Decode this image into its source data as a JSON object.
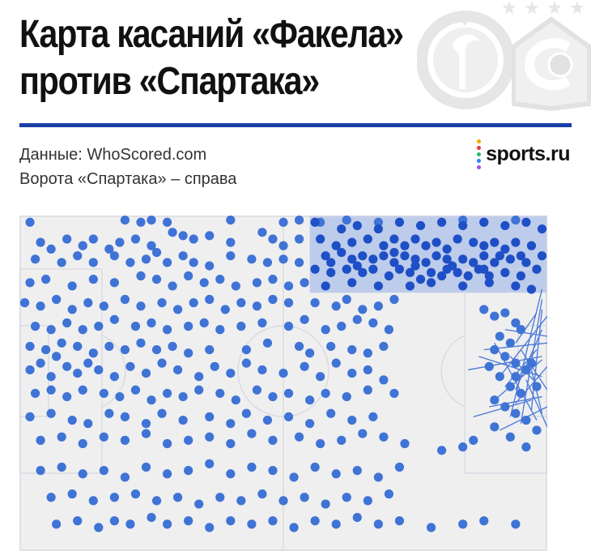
{
  "header": {
    "title_line1": "Карта касаний «Факела»",
    "title_line2": "против «Спартака»",
    "source": "Данные: WhoScored.com",
    "note": "Ворота «Спартака» – справа",
    "brand": "sports.ru",
    "brand_dot_colors": [
      "#f2a700",
      "#e5383b",
      "#2bb673",
      "#2d7ff9",
      "#9b51e0"
    ]
  },
  "colors": {
    "rule": "#1a3fa6",
    "touch": "#3f73d6",
    "highlight_touch": "#1f4fc6",
    "highlight_zone": "#b4c6ea",
    "pitch_bg": "#efefef",
    "pitch_lines": "#d6d6e2",
    "pass_line": "#4a78d8",
    "crest": "#e6e6e6"
  },
  "chart_data": {
    "type": "scatter",
    "pitch": {
      "length": 100,
      "width": 100
    },
    "xlim": [
      0,
      100
    ],
    "ylim": [
      0,
      100
    ],
    "highlight_zone": {
      "x": [
        55,
        100
      ],
      "y": [
        77,
        100
      ]
    },
    "highlight_points": [
      [
        56,
        98
      ],
      [
        61,
        96
      ],
      [
        64,
        97
      ],
      [
        68,
        96
      ],
      [
        72,
        98
      ],
      [
        76,
        97
      ],
      [
        80,
        98
      ],
      [
        84,
        97
      ],
      [
        88,
        98
      ],
      [
        92,
        97
      ],
      [
        96,
        98
      ],
      [
        99,
        96
      ],
      [
        57,
        93
      ],
      [
        60,
        91
      ],
      [
        63,
        92
      ],
      [
        66,
        93
      ],
      [
        69,
        91
      ],
      [
        71,
        93
      ],
      [
        73,
        91
      ],
      [
        75,
        93
      ],
      [
        77,
        91
      ],
      [
        79,
        92
      ],
      [
        81,
        90
      ],
      [
        83,
        93
      ],
      [
        86,
        92
      ],
      [
        88,
        91
      ],
      [
        90,
        92
      ],
      [
        92,
        90
      ],
      [
        94,
        92
      ],
      [
        97,
        91
      ],
      [
        58,
        88
      ],
      [
        61,
        89
      ],
      [
        63,
        87
      ],
      [
        65,
        88
      ],
      [
        67,
        87
      ],
      [
        69,
        88
      ],
      [
        71,
        86
      ],
      [
        73,
        88
      ],
      [
        75,
        87
      ],
      [
        77,
        86
      ],
      [
        79,
        88
      ],
      [
        81,
        87
      ],
      [
        82,
        85
      ],
      [
        84,
        87
      ],
      [
        86,
        86
      ],
      [
        88,
        88
      ],
      [
        90,
        86
      ],
      [
        93,
        87
      ],
      [
        96,
        86
      ],
      [
        99,
        88
      ],
      [
        56,
        84
      ],
      [
        59,
        83
      ],
      [
        62,
        84
      ],
      [
        65,
        83
      ],
      [
        67,
        84
      ],
      [
        70,
        82
      ],
      [
        72,
        84
      ],
      [
        74,
        83
      ],
      [
        76,
        81
      ],
      [
        78,
        83
      ],
      [
        80,
        82
      ],
      [
        83,
        83
      ],
      [
        85,
        82
      ],
      [
        87,
        84
      ],
      [
        89,
        82
      ],
      [
        92,
        83
      ],
      [
        95,
        82
      ],
      [
        98,
        84
      ],
      [
        58,
        79
      ],
      [
        63,
        80
      ],
      [
        68,
        79
      ],
      [
        74,
        79
      ],
      [
        78,
        80
      ],
      [
        84,
        79
      ],
      [
        89,
        80
      ],
      [
        94,
        79
      ],
      [
        97,
        78
      ],
      [
        59,
        86
      ],
      [
        64,
        85
      ],
      [
        71,
        89
      ],
      [
        75,
        85
      ],
      [
        81,
        84
      ],
      [
        88,
        84
      ],
      [
        91,
        88
      ],
      [
        95,
        88
      ]
    ],
    "points": [
      [
        2,
        98
      ],
      [
        20,
        99
      ],
      [
        23,
        98
      ],
      [
        25,
        99
      ],
      [
        28,
        98
      ],
      [
        40,
        99
      ],
      [
        50,
        98
      ],
      [
        53,
        99
      ],
      [
        57,
        98
      ],
      [
        62,
        99
      ],
      [
        68,
        98
      ],
      [
        84,
        99
      ],
      [
        88,
        98
      ],
      [
        94,
        99
      ],
      [
        4,
        92
      ],
      [
        6,
        90
      ],
      [
        9,
        93
      ],
      [
        12,
        91
      ],
      [
        14,
        93
      ],
      [
        17,
        90
      ],
      [
        19,
        92
      ],
      [
        22,
        93
      ],
      [
        25,
        91
      ],
      [
        29,
        95
      ],
      [
        31,
        94
      ],
      [
        33,
        93
      ],
      [
        36,
        94
      ],
      [
        40,
        92
      ],
      [
        46,
        95
      ],
      [
        48,
        93
      ],
      [
        50,
        91
      ],
      [
        53,
        93
      ],
      [
        3,
        87
      ],
      [
        8,
        86
      ],
      [
        11,
        88
      ],
      [
        14,
        86
      ],
      [
        18,
        88
      ],
      [
        21,
        86
      ],
      [
        24,
        87
      ],
      [
        26,
        89
      ],
      [
        28,
        86
      ],
      [
        31,
        88
      ],
      [
        33,
        86
      ],
      [
        36,
        85
      ],
      [
        40,
        88
      ],
      [
        44,
        87
      ],
      [
        47,
        86
      ],
      [
        50,
        87
      ],
      [
        53,
        86
      ],
      [
        2,
        80
      ],
      [
        5,
        81
      ],
      [
        10,
        79
      ],
      [
        14,
        81
      ],
      [
        18,
        80
      ],
      [
        23,
        82
      ],
      [
        26,
        81
      ],
      [
        29,
        79
      ],
      [
        32,
        82
      ],
      [
        35,
        80
      ],
      [
        38,
        81
      ],
      [
        41,
        79
      ],
      [
        45,
        80
      ],
      [
        48,
        81
      ],
      [
        51,
        79
      ],
      [
        54,
        80
      ],
      [
        1,
        74
      ],
      [
        4,
        73
      ],
      [
        7,
        75
      ],
      [
        10,
        72
      ],
      [
        13,
        74
      ],
      [
        16,
        73
      ],
      [
        20,
        75
      ],
      [
        23,
        73
      ],
      [
        27,
        74
      ],
      [
        30,
        72
      ],
      [
        33,
        74
      ],
      [
        36,
        75
      ],
      [
        39,
        72
      ],
      [
        42,
        74
      ],
      [
        45,
        73
      ],
      [
        48,
        75
      ],
      [
        51,
        74
      ],
      [
        56,
        74
      ],
      [
        60,
        73
      ],
      [
        62,
        75
      ],
      [
        65,
        72
      ],
      [
        68,
        73
      ],
      [
        71,
        75
      ],
      [
        3,
        67
      ],
      [
        6,
        66
      ],
      [
        9,
        68
      ],
      [
        12,
        66
      ],
      [
        15,
        67
      ],
      [
        18,
        69
      ],
      [
        22,
        67
      ],
      [
        25,
        68
      ],
      [
        28,
        66
      ],
      [
        32,
        67
      ],
      [
        35,
        68
      ],
      [
        38,
        66
      ],
      [
        42,
        67
      ],
      [
        46,
        68
      ],
      [
        51,
        67
      ],
      [
        54,
        69
      ],
      [
        58,
        66
      ],
      [
        61,
        67
      ],
      [
        64,
        69
      ],
      [
        67,
        68
      ],
      [
        70,
        66
      ],
      [
        2,
        61
      ],
      [
        5,
        60
      ],
      [
        7,
        58
      ],
      [
        8,
        62
      ],
      [
        11,
        61
      ],
      [
        14,
        59
      ],
      [
        17,
        61
      ],
      [
        20,
        60
      ],
      [
        23,
        62
      ],
      [
        26,
        60
      ],
      [
        29,
        61
      ],
      [
        32,
        59
      ],
      [
        36,
        60
      ],
      [
        43,
        60
      ],
      [
        47,
        62
      ],
      [
        53,
        61
      ],
      [
        55,
        59
      ],
      [
        59,
        61
      ],
      [
        63,
        60
      ],
      [
        66,
        59
      ],
      [
        69,
        61
      ],
      [
        2,
        54
      ],
      [
        4,
        56
      ],
      [
        6,
        52
      ],
      [
        9,
        55
      ],
      [
        11,
        53
      ],
      [
        13,
        56
      ],
      [
        15,
        54
      ],
      [
        18,
        52
      ],
      [
        21,
        55
      ],
      [
        24,
        53
      ],
      [
        27,
        56
      ],
      [
        30,
        54
      ],
      [
        34,
        52
      ],
      [
        37,
        55
      ],
      [
        40,
        53
      ],
      [
        43,
        56
      ],
      [
        46,
        54
      ],
      [
        50,
        53
      ],
      [
        54,
        55
      ],
      [
        57,
        52
      ],
      [
        60,
        56
      ],
      [
        63,
        53
      ],
      [
        66,
        54
      ],
      [
        69,
        51
      ],
      [
        3,
        47
      ],
      [
        6,
        48
      ],
      [
        9,
        46
      ],
      [
        12,
        48
      ],
      [
        16,
        47
      ],
      [
        19,
        46
      ],
      [
        22,
        48
      ],
      [
        25,
        45
      ],
      [
        28,
        47
      ],
      [
        31,
        46
      ],
      [
        34,
        48
      ],
      [
        38,
        47
      ],
      [
        41,
        45
      ],
      [
        45,
        48
      ],
      [
        48,
        46
      ],
      [
        51,
        47
      ],
      [
        55,
        45
      ],
      [
        58,
        47
      ],
      [
        62,
        46
      ],
      [
        66,
        48
      ],
      [
        71,
        47
      ],
      [
        2,
        40
      ],
      [
        6,
        41
      ],
      [
        10,
        39
      ],
      [
        13,
        38
      ],
      [
        17,
        41
      ],
      [
        20,
        40
      ],
      [
        24,
        38
      ],
      [
        27,
        41
      ],
      [
        31,
        39
      ],
      [
        36,
        40
      ],
      [
        40,
        38
      ],
      [
        43,
        41
      ],
      [
        47,
        39
      ],
      [
        51,
        40
      ],
      [
        55,
        38
      ],
      [
        59,
        41
      ],
      [
        63,
        39
      ],
      [
        67,
        40
      ],
      [
        4,
        33
      ],
      [
        8,
        34
      ],
      [
        12,
        32
      ],
      [
        16,
        34
      ],
      [
        20,
        33
      ],
      [
        24,
        35
      ],
      [
        28,
        32
      ],
      [
        32,
        33
      ],
      [
        36,
        34
      ],
      [
        40,
        32
      ],
      [
        44,
        35
      ],
      [
        48,
        33
      ],
      [
        53,
        34
      ],
      [
        57,
        32
      ],
      [
        61,
        33
      ],
      [
        65,
        35
      ],
      [
        69,
        34
      ],
      [
        73,
        32
      ],
      [
        80,
        30
      ],
      [
        84,
        31
      ],
      [
        4,
        24
      ],
      [
        8,
        25
      ],
      [
        12,
        23
      ],
      [
        16,
        24
      ],
      [
        20,
        22
      ],
      [
        24,
        25
      ],
      [
        28,
        23
      ],
      [
        32,
        24
      ],
      [
        36,
        26
      ],
      [
        40,
        23
      ],
      [
        44,
        25
      ],
      [
        48,
        24
      ],
      [
        52,
        22
      ],
      [
        56,
        25
      ],
      [
        60,
        23
      ],
      [
        64,
        24
      ],
      [
        68,
        22
      ],
      [
        72,
        25
      ],
      [
        6,
        16
      ],
      [
        10,
        17
      ],
      [
        14,
        15
      ],
      [
        18,
        16
      ],
      [
        22,
        17
      ],
      [
        26,
        15
      ],
      [
        30,
        16
      ],
      [
        34,
        14
      ],
      [
        38,
        16
      ],
      [
        42,
        15
      ],
      [
        46,
        17
      ],
      [
        50,
        15
      ],
      [
        54,
        16
      ],
      [
        58,
        14
      ],
      [
        62,
        16
      ],
      [
        66,
        15
      ],
      [
        70,
        17
      ],
      [
        7,
        8
      ],
      [
        11,
        9
      ],
      [
        15,
        7
      ],
      [
        18,
        9
      ],
      [
        21,
        8
      ],
      [
        25,
        10
      ],
      [
        28,
        8
      ],
      [
        32,
        9
      ],
      [
        36,
        7
      ],
      [
        40,
        9
      ],
      [
        44,
        8
      ],
      [
        48,
        9
      ],
      [
        52,
        7
      ],
      [
        56,
        9
      ],
      [
        60,
        8
      ],
      [
        64,
        10
      ],
      [
        68,
        8
      ],
      [
        72,
        9
      ],
      [
        78,
        7
      ],
      [
        84,
        8
      ],
      [
        88,
        9
      ],
      [
        94,
        8
      ],
      [
        88,
        72
      ],
      [
        90,
        70
      ],
      [
        92,
        71
      ],
      [
        94,
        68
      ],
      [
        95,
        66
      ],
      [
        91,
        64
      ],
      [
        93,
        62
      ],
      [
        90,
        60
      ],
      [
        92,
        58
      ],
      [
        94,
        56
      ],
      [
        96,
        54
      ],
      [
        91,
        52
      ],
      [
        93,
        49
      ],
      [
        95,
        47
      ],
      [
        90,
        45
      ],
      [
        92,
        43
      ],
      [
        94,
        41
      ],
      [
        96,
        39
      ],
      [
        98,
        36
      ],
      [
        86,
        33
      ],
      [
        90,
        37
      ],
      [
        93,
        34
      ],
      [
        96,
        31
      ],
      [
        94,
        52
      ],
      [
        97,
        56
      ],
      [
        98,
        49
      ],
      [
        89,
        55
      ]
    ],
    "lines": [
      [
        [
          99,
          78
        ],
        [
          93,
          40
        ]
      ],
      [
        [
          99,
          75
        ],
        [
          95,
          38
        ]
      ],
      [
        [
          99,
          72
        ],
        [
          97,
          42
        ]
      ],
      [
        [
          100,
          70
        ],
        [
          91,
          52
        ]
      ],
      [
        [
          99,
          66
        ],
        [
          94,
          48
        ]
      ],
      [
        [
          100,
          62
        ],
        [
          88,
          60
        ]
      ],
      [
        [
          98,
          60
        ],
        [
          92,
          49
        ]
      ],
      [
        [
          99,
          57
        ],
        [
          90,
          45
        ]
      ],
      [
        [
          100,
          55
        ],
        [
          94,
          44
        ]
      ],
      [
        [
          99,
          52
        ],
        [
          87,
          58
        ]
      ],
      [
        [
          98,
          50
        ],
        [
          93,
          58
        ]
      ],
      [
        [
          100,
          48
        ],
        [
          95,
          60
        ]
      ],
      [
        [
          99,
          46
        ],
        [
          89,
          43
        ]
      ],
      [
        [
          97,
          45
        ],
        [
          86,
          40
        ]
      ],
      [
        [
          100,
          43
        ],
        [
          91,
          36
        ]
      ],
      [
        [
          99,
          41
        ],
        [
          97,
          54
        ]
      ],
      [
        [
          98,
          39
        ],
        [
          90,
          62
        ]
      ],
      [
        [
          100,
          37
        ],
        [
          96,
          51
        ]
      ],
      [
        [
          99,
          58
        ],
        [
          85,
          54
        ]
      ],
      [
        [
          100,
          64
        ],
        [
          92,
          66
        ]
      ],
      [
        [
          98,
          71
        ],
        [
          94,
          62
        ]
      ]
    ]
  }
}
